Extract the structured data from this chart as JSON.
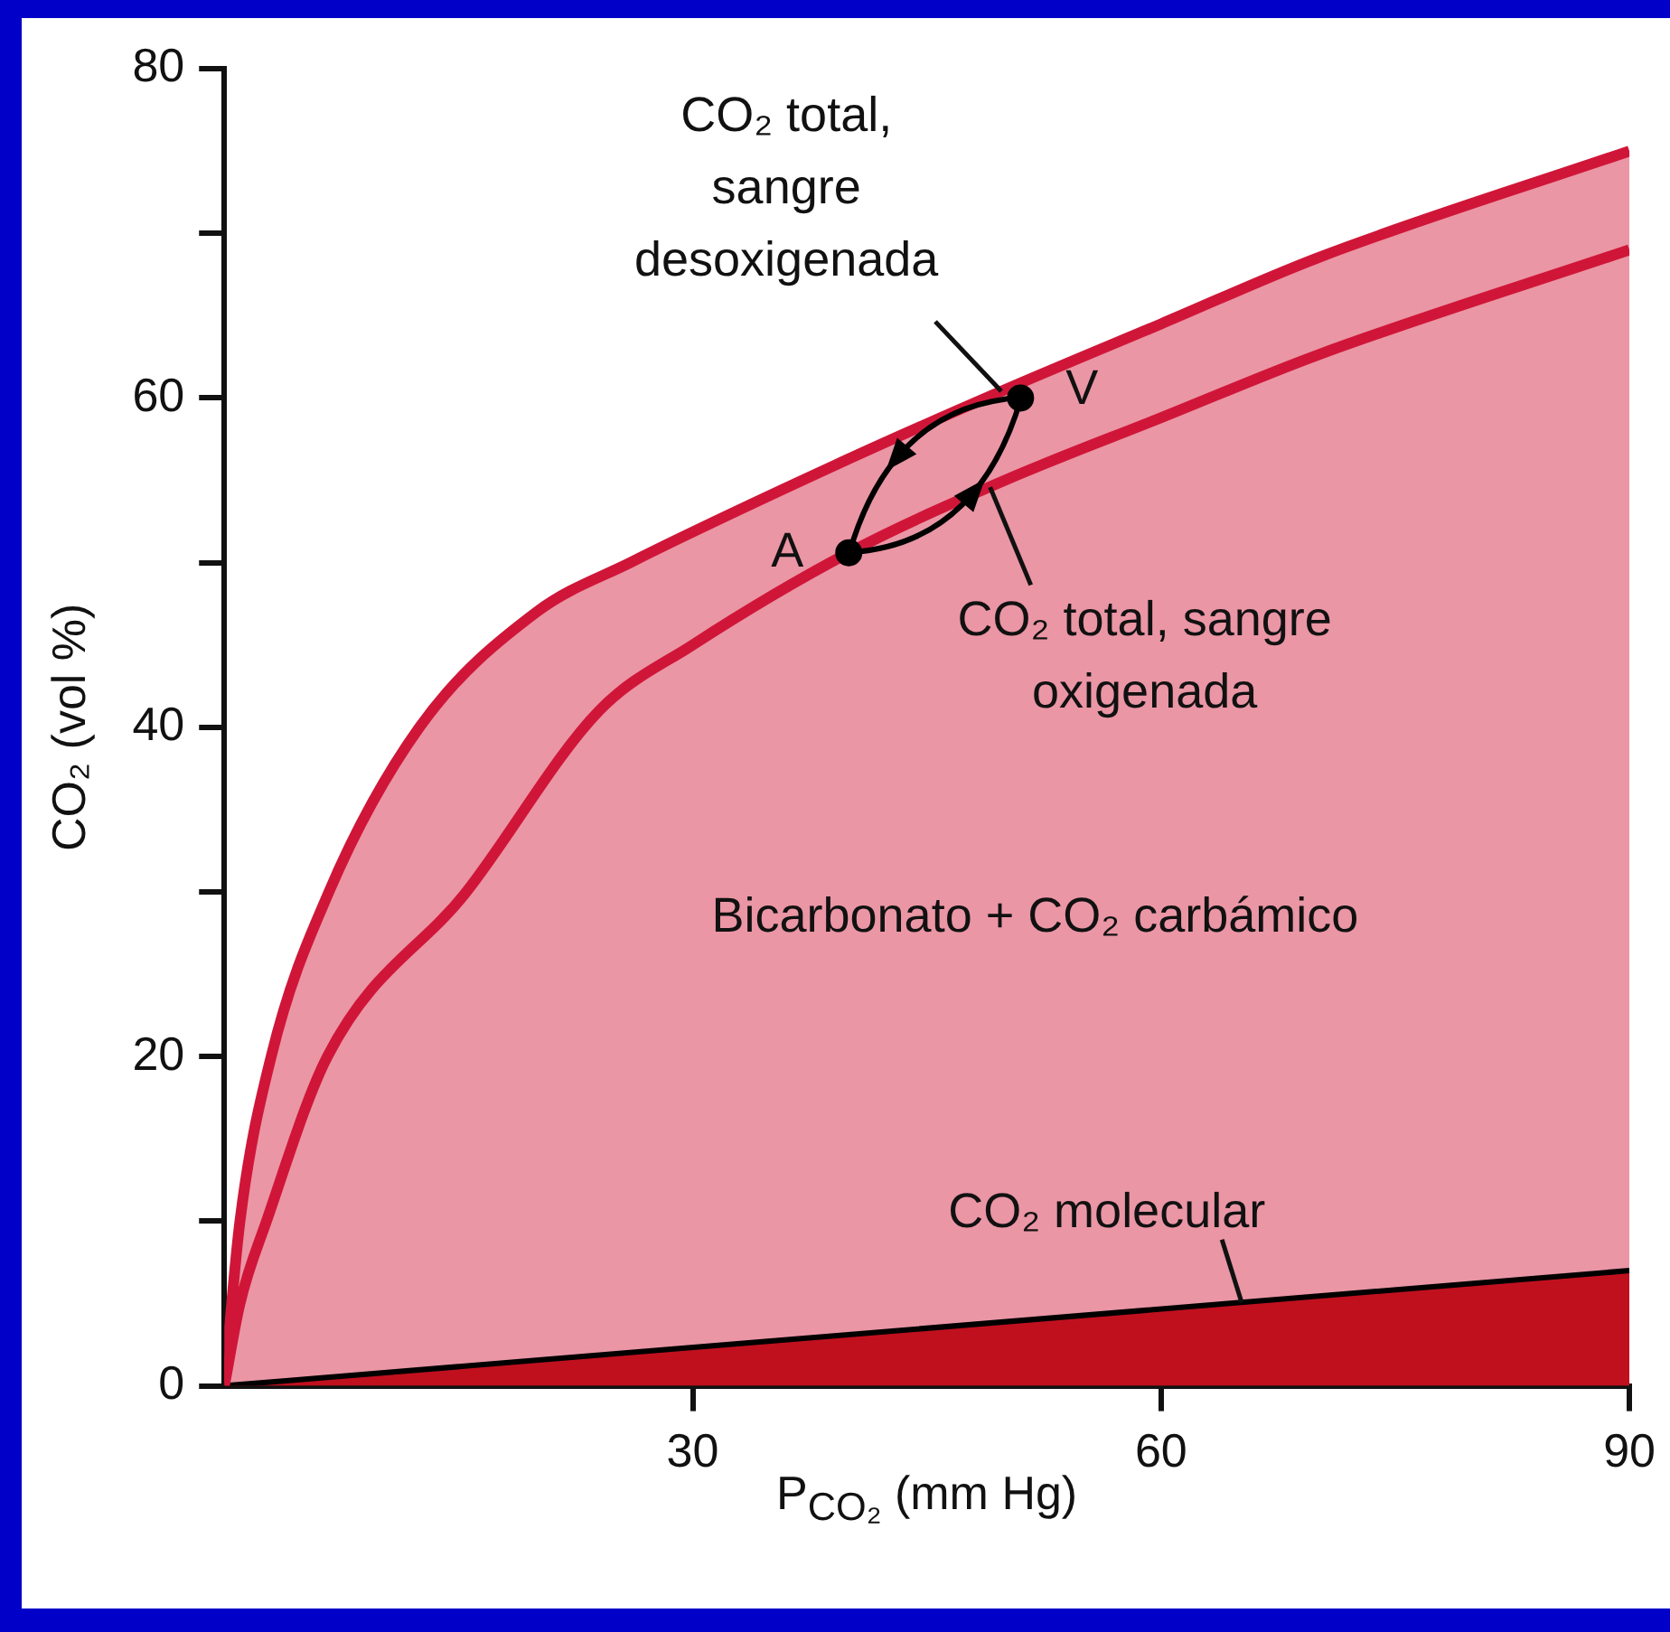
{
  "chart_data": {
    "type": "line",
    "xlabel": "P$_{CO₂}$ (mm Hg)",
    "ylabel": "CO₂ (vol %)",
    "xlim": [
      0,
      90
    ],
    "xticks": [
      30,
      60,
      90
    ],
    "ylim": [
      0,
      80
    ],
    "yticks": [
      0,
      {
        "value": 10,
        "label": null
      },
      20,
      {
        "value": 30,
        "label": null
      },
      40,
      {
        "value": 50,
        "label": null
      },
      60,
      {
        "value": 70,
        "label": null
      },
      80
    ],
    "grid": false,
    "legend": false,
    "marker": "none",
    "line_style": "solid",
    "annotations": [
      "Bicarbonato + CO₂ carbámico"
    ],
    "series": [
      {
        "name": "CO₂ total, sangre desoxigenada",
        "type": "area",
        "color": "#d01638",
        "x": [
          0,
          1,
          3,
          6.7,
          12.5,
          20,
          26,
          40,
          50,
          60,
          70,
          90
        ],
        "values": [
          0,
          10,
          20,
          30,
          40,
          47,
          50,
          56.3,
          60.5,
          64.5,
          68.5,
          75
        ]
      },
      {
        "name": "CO₂ total, sangre oxigenada",
        "type": "line",
        "color": "#d01638",
        "x": [
          0,
          1,
          2.7,
          6.6,
          15.5,
          24,
          30,
          40,
          50,
          60,
          70,
          90
        ],
        "values": [
          0,
          5,
          10,
          20,
          30,
          41,
          45,
          50.6,
          55,
          58.8,
          62.6,
          69
        ]
      },
      {
        "name": "CO₂ molecular",
        "type": "area",
        "color": "#c0101e",
        "x": [
          0,
          90
        ],
        "values": [
          0,
          7
        ]
      },
      {
        "name": "A",
        "type": "scatter",
        "color": "#000000",
        "marker": "circle",
        "x": [
          40
        ],
        "values": [
          50.6
        ]
      },
      {
        "name": "V",
        "type": "scatter",
        "color": "#000000",
        "marker": "circle",
        "x": [
          51
        ],
        "values": [
          60
        ]
      }
    ]
  }
}
